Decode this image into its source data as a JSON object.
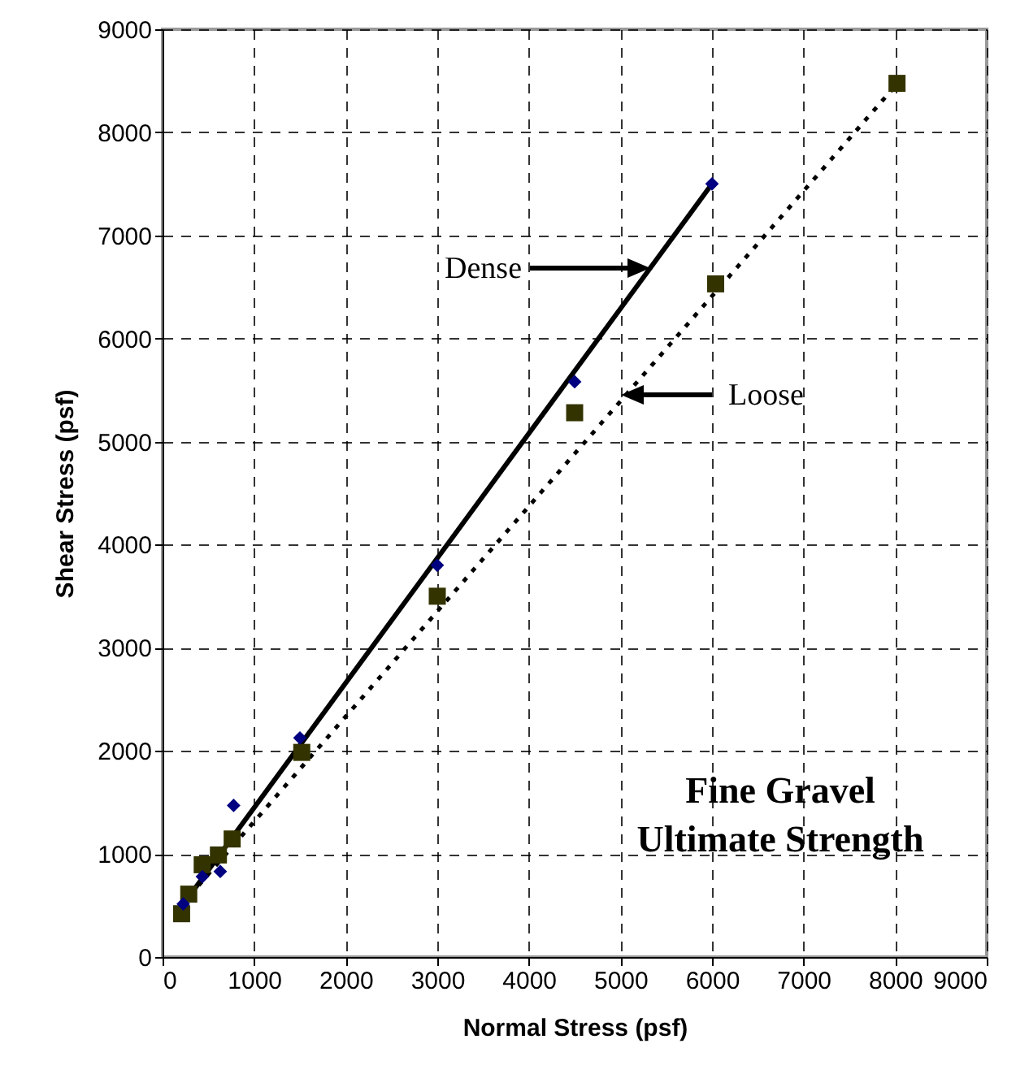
{
  "chart_data": {
    "type": "scatter",
    "xlabel": "Normal Stress (psf)",
    "ylabel": "Shear Stress (psf)",
    "xlim": [
      0,
      9000
    ],
    "ylim": [
      0,
      9000
    ],
    "xticks": [
      0,
      1000,
      2000,
      3000,
      4000,
      5000,
      6000,
      7000,
      8000,
      9000
    ],
    "yticks": [
      0,
      1000,
      2000,
      3000,
      4000,
      5000,
      6000,
      7000,
      8000,
      9000
    ],
    "grid": true,
    "series": [
      {
        "marker": "diamond",
        "color": "#000080",
        "x": [
          226,
          435,
          630,
          776,
          1500,
          3000,
          4500,
          6000
        ],
        "values": [
          515,
          780,
          830,
          1470,
          2125,
          3800,
          5580,
          7500
        ]
      },
      {
        "marker": "square",
        "color": "#333300",
        "x": [
          208,
          286,
          433,
          610,
          760,
          1520,
          3000,
          4500,
          6040,
          8020
        ],
        "values": [
          420,
          610,
          895,
          990,
          1145,
          1985,
          3500,
          5280,
          6530,
          8475
        ]
      },
      {
        "type": "line",
        "line_style": "solid",
        "color": "#000000",
        "x": [
          200,
          6000
        ],
        "values": [
          480,
          7500
        ]
      },
      {
        "type": "line",
        "line_style": "dotted",
        "color": "#000000",
        "x": [
          300,
          8000
        ],
        "values": [
          600,
          8450
        ]
      }
    ],
    "annotations": [
      "Dense",
      "Loose",
      "Fine Gravel\nUltimate Strength"
    ]
  }
}
